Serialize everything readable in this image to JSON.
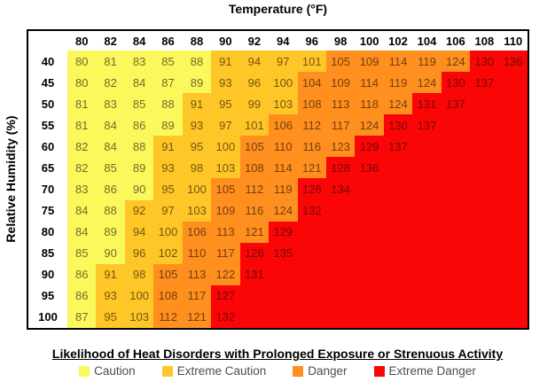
{
  "chart_data": {
    "type": "heatmap",
    "title": "Temperature (°F)",
    "ylabel": "Relative Humidity (%)",
    "legend_title": "Likelihood of Heat Disorders with Prolonged Exposure or Strenuous Activity",
    "columns": [
      80,
      82,
      84,
      86,
      88,
      90,
      92,
      94,
      96,
      98,
      100,
      102,
      104,
      106,
      108,
      110
    ],
    "rows": [
      40,
      45,
      50,
      55,
      60,
      65,
      70,
      75,
      80,
      85,
      90,
      95,
      100
    ],
    "values": [
      [
        80,
        81,
        83,
        85,
        88,
        91,
        94,
        97,
        101,
        105,
        109,
        114,
        119,
        124,
        130,
        136
      ],
      [
        80,
        82,
        84,
        87,
        89,
        93,
        96,
        100,
        104,
        109,
        114,
        119,
        124,
        130,
        137
      ],
      [
        81,
        83,
        85,
        88,
        91,
        95,
        99,
        103,
        108,
        113,
        118,
        124,
        131,
        137
      ],
      [
        81,
        84,
        86,
        89,
        93,
        97,
        101,
        106,
        112,
        117,
        124,
        130,
        137
      ],
      [
        82,
        84,
        88,
        91,
        95,
        100,
        105,
        110,
        116,
        123,
        129,
        137
      ],
      [
        82,
        85,
        89,
        93,
        98,
        103,
        108,
        114,
        121,
        128,
        136
      ],
      [
        83,
        86,
        90,
        95,
        100,
        105,
        112,
        119,
        126,
        134
      ],
      [
        84,
        88,
        92,
        97,
        103,
        109,
        116,
        124,
        132
      ],
      [
        84,
        89,
        94,
        100,
        106,
        113,
        121,
        129
      ],
      [
        85,
        90,
        96,
        102,
        110,
        117,
        126,
        135
      ],
      [
        86,
        91,
        98,
        105,
        113,
        122,
        131
      ],
      [
        86,
        93,
        100,
        108,
        117,
        127
      ],
      [
        87,
        95,
        103,
        112,
        121,
        132
      ]
    ],
    "categories": [
      {
        "label": "Caution",
        "color": "#FBF85C",
        "max": 90
      },
      {
        "label": "Extreme Caution",
        "color": "#FFC627",
        "max": 103
      },
      {
        "label": "Danger",
        "color": "#FF8F1E",
        "max": 124
      },
      {
        "label": "Extreme Danger",
        "color": "#FB0606",
        "max": 999
      }
    ]
  }
}
